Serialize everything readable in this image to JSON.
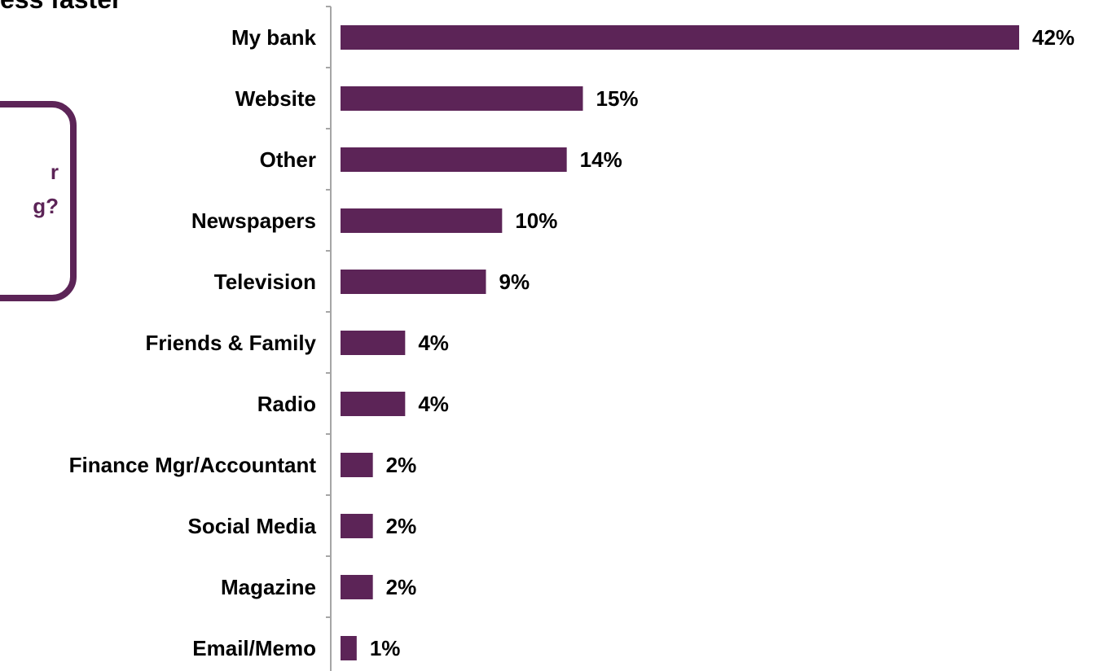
{
  "title_fragment": "ess faster",
  "callout": {
    "lines": [
      "r",
      "g?"
    ]
  },
  "colors": {
    "bar": "#5c2457",
    "axis": "#a6a6a6",
    "text": "#000000"
  },
  "chart_data": {
    "type": "bar",
    "orientation": "horizontal",
    "categories": [
      "My bank",
      "Website",
      "Other",
      "Newspapers",
      "Television",
      "Friends & Family",
      "Radio",
      "Finance Mgr/Accountant",
      "Social Media",
      "Magazine",
      "Email/Memo"
    ],
    "values": [
      42,
      15,
      14,
      10,
      9,
      4,
      4,
      2,
      2,
      2,
      1
    ],
    "value_labels": [
      "42%",
      "15%",
      "14%",
      "10%",
      "9%",
      "4%",
      "4%",
      "2%",
      "2%",
      "2%",
      "1%"
    ],
    "unit": "%",
    "xlim": [
      0,
      42
    ],
    "grid": false,
    "legend": "none"
  }
}
